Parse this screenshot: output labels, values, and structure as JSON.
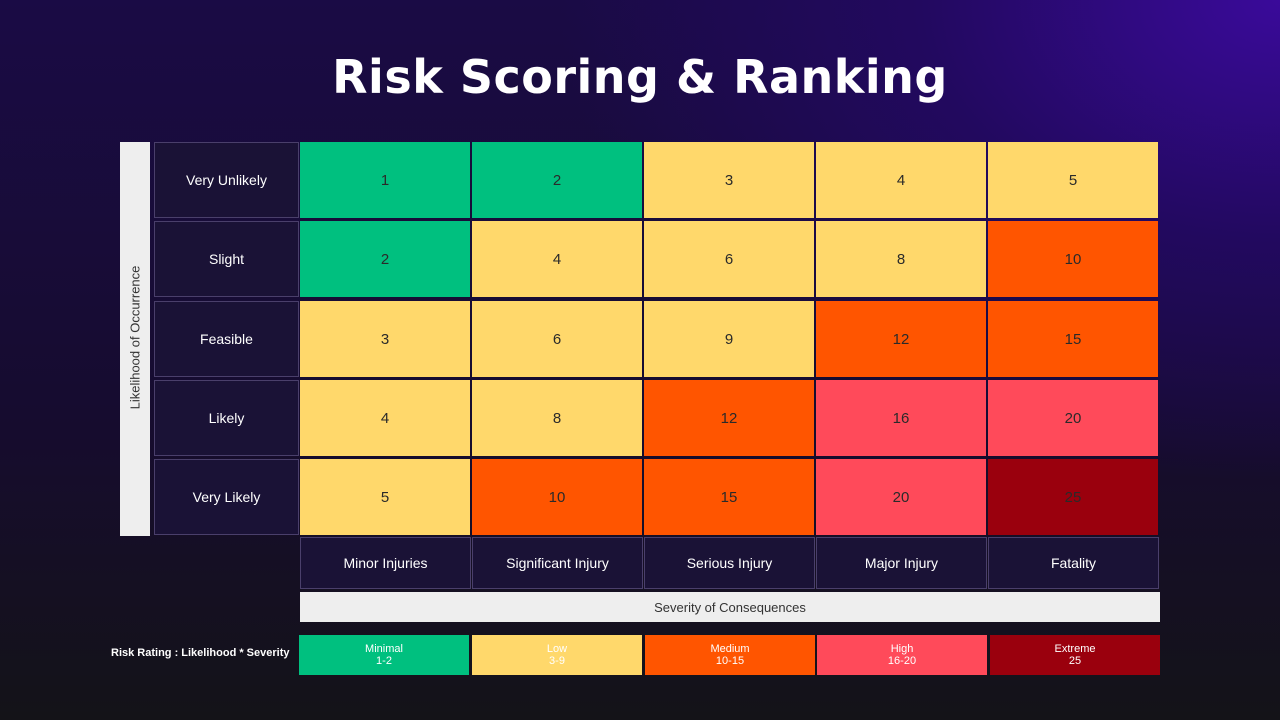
{
  "title": "Risk Scoring & Ranking",
  "y_axis_label": "Likelihood of Occurrence",
  "x_axis_label": "Severity of Consequences",
  "rows": [
    "Very Unlikely",
    "Slight",
    "Feasible",
    "Likely",
    "Very Likely"
  ],
  "columns": [
    "Minor Injuries",
    "Significant Injury",
    "Serious Injury",
    "Major Injury",
    "Fatality"
  ],
  "matrix": [
    [
      {
        "v": "1",
        "c": "#00c07f"
      },
      {
        "v": "2",
        "c": "#00c07f"
      },
      {
        "v": "3",
        "c": "#ffd86b"
      },
      {
        "v": "4",
        "c": "#ffd86b"
      },
      {
        "v": "5",
        "c": "#ffd86b"
      }
    ],
    [
      {
        "v": "2",
        "c": "#00c07f"
      },
      {
        "v": "4",
        "c": "#ffd86b"
      },
      {
        "v": "6",
        "c": "#ffd86b"
      },
      {
        "v": "8",
        "c": "#ffd86b"
      },
      {
        "v": "10",
        "c": "#ff5500"
      }
    ],
    [
      {
        "v": "3",
        "c": "#ffd86b"
      },
      {
        "v": "6",
        "c": "#ffd86b"
      },
      {
        "v": "9",
        "c": "#ffd86b"
      },
      {
        "v": "12",
        "c": "#ff5500"
      },
      {
        "v": "15",
        "c": "#ff5500"
      }
    ],
    [
      {
        "v": "4",
        "c": "#ffd86b"
      },
      {
        "v": "8",
        "c": "#ffd86b"
      },
      {
        "v": "12",
        "c": "#ff5500"
      },
      {
        "v": "16",
        "c": "#ff4a5a"
      },
      {
        "v": "20",
        "c": "#ff4a5a"
      }
    ],
    [
      {
        "v": "5",
        "c": "#ffd86b"
      },
      {
        "v": "10",
        "c": "#ff5500"
      },
      {
        "v": "15",
        "c": "#ff5500"
      },
      {
        "v": "20",
        "c": "#ff4a5a"
      },
      {
        "v": "25",
        "c": "#9a000d"
      }
    ]
  ],
  "legend": {
    "title": "Risk Rating : Likelihood * Severity",
    "items": [
      {
        "name": "Minimal",
        "range": "1-2",
        "color": "#00c07f"
      },
      {
        "name": "Low",
        "range": "3-9",
        "color": "#ffd86b"
      },
      {
        "name": "Medium",
        "range": "10-15",
        "color": "#ff5500"
      },
      {
        "name": "High",
        "range": "16-20",
        "color": "#ff4a5a"
      },
      {
        "name": "Extreme",
        "range": "25",
        "color": "#9a000d"
      }
    ]
  }
}
